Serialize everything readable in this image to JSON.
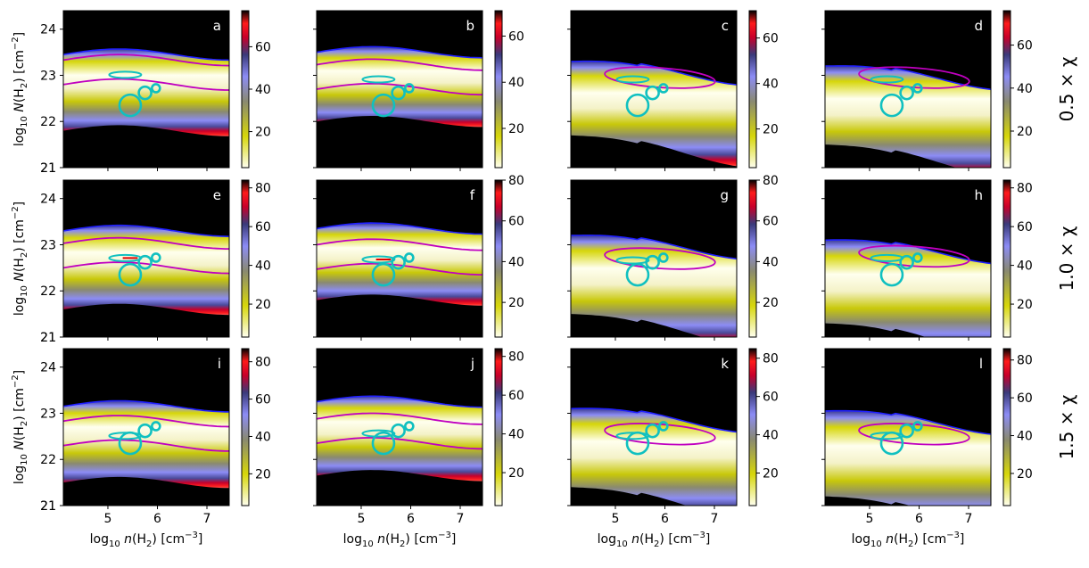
{
  "chart_data": {
    "type": "heatmap",
    "grid": {
      "rows": 3,
      "cols": 4
    },
    "xlabel": "log10 n(H2) [cm−3]",
    "ylabel": "log10 N(H2) [cm−2]",
    "xlim": [
      4.1,
      7.45
    ],
    "ylim": [
      21.0,
      24.4
    ],
    "xticks": [
      5,
      6,
      7
    ],
    "yticks": [
      21,
      22,
      23,
      24
    ],
    "colormap": [
      "#ffffee",
      "#d6d60a",
      "#8a8a70",
      "#8c8cf5",
      "#3a3a7a",
      "#c8002a",
      "#ff1a1a",
      "#000000"
    ],
    "contour_colors": {
      "magenta": "#c000c0",
      "red": "#e00000",
      "blue": "#2020ff",
      "cyan": "#10c0c0"
    },
    "row_labels": [
      {
        "prefix": "0.5",
        "symbol": "χ"
      },
      {
        "prefix": "1.0",
        "symbol": "χ"
      },
      {
        "prefix": "1.5",
        "symbol": "χ"
      }
    ],
    "circles": [
      {
        "x": 5.45,
        "y": 22.35,
        "size": "large"
      },
      {
        "x": 5.75,
        "y": 22.62,
        "size": "medium"
      },
      {
        "x": 5.97,
        "y": 22.72,
        "size": "small"
      }
    ],
    "panels": [
      {
        "label": "a",
        "row": 0,
        "col": 0,
        "cbar_ticks": [
          20,
          40,
          60
        ],
        "cbar_max": 77,
        "y_low": 21.8,
        "y_high": 23.45,
        "y_peak": 23.05,
        "shape": "band"
      },
      {
        "label": "b",
        "row": 0,
        "col": 1,
        "cbar_ticks": [
          20,
          40,
          60
        ],
        "cbar_max": 71,
        "y_low": 22.0,
        "y_high": 23.5,
        "y_peak": 22.95,
        "shape": "band"
      },
      {
        "label": "c",
        "row": 0,
        "col": 2,
        "cbar_ticks": [
          20,
          40,
          60
        ],
        "cbar_max": 72,
        "y_low": 21.7,
        "y_high": 23.3,
        "y_peak": 22.95,
        "shape": "tilted"
      },
      {
        "label": "d",
        "row": 0,
        "col": 3,
        "cbar_ticks": [
          20,
          40,
          60
        ],
        "cbar_max": 76,
        "y_low": 21.5,
        "y_high": 23.2,
        "y_peak": 22.95,
        "shape": "tilted"
      },
      {
        "label": "e",
        "row": 1,
        "col": 0,
        "cbar_ticks": [
          20,
          40,
          60,
          80
        ],
        "cbar_max": 84,
        "y_low": 21.6,
        "y_high": 23.3,
        "y_peak": 22.75,
        "shape": "band"
      },
      {
        "label": "f",
        "row": 1,
        "col": 1,
        "cbar_ticks": [
          20,
          40,
          60,
          80
        ],
        "cbar_max": 80,
        "y_low": 21.8,
        "y_high": 23.35,
        "y_peak": 22.72,
        "shape": "band"
      },
      {
        "label": "g",
        "row": 1,
        "col": 2,
        "cbar_ticks": [
          20,
          40,
          60,
          80
        ],
        "cbar_max": 80,
        "y_low": 21.5,
        "y_high": 23.2,
        "y_peak": 22.7,
        "shape": "tilted"
      },
      {
        "label": "h",
        "row": 1,
        "col": 3,
        "cbar_ticks": [
          20,
          40,
          60,
          80
        ],
        "cbar_max": 84,
        "y_low": 21.3,
        "y_high": 23.1,
        "y_peak": 22.75,
        "shape": "tilted"
      },
      {
        "label": "i",
        "row": 2,
        "col": 0,
        "cbar_ticks": [
          20,
          40,
          60,
          80
        ],
        "cbar_max": 87,
        "y_low": 21.5,
        "y_high": 23.15,
        "y_peak": 22.55,
        "shape": "band"
      },
      {
        "label": "j",
        "row": 2,
        "col": 1,
        "cbar_ticks": [
          20,
          40,
          60,
          80
        ],
        "cbar_max": 84,
        "y_low": 21.65,
        "y_high": 23.25,
        "y_peak": 22.6,
        "shape": "band"
      },
      {
        "label": "k",
        "row": 2,
        "col": 2,
        "cbar_ticks": [
          20,
          40,
          60,
          80
        ],
        "cbar_max": 85,
        "y_low": 21.4,
        "y_high": 23.1,
        "y_peak": 22.55,
        "shape": "tilted"
      },
      {
        "label": "l",
        "row": 2,
        "col": 3,
        "cbar_ticks": [
          20,
          40,
          60,
          80
        ],
        "cbar_max": 86,
        "y_low": 21.2,
        "y_high": 23.05,
        "y_peak": 22.55,
        "shape": "tilted"
      }
    ]
  }
}
